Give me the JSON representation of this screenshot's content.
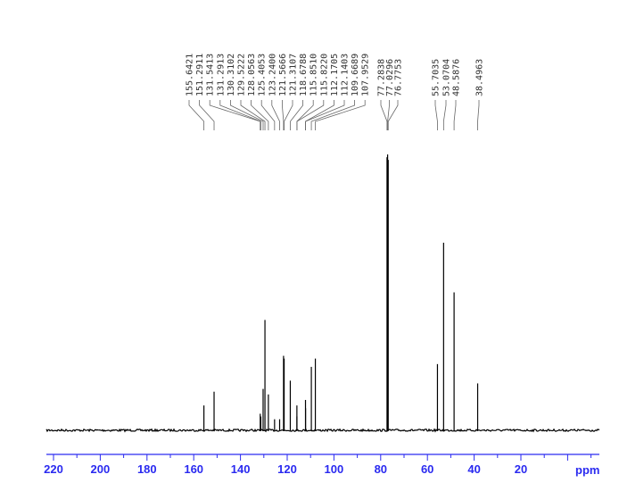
{
  "chart_data": {
    "type": "line",
    "xlabel": "ppm",
    "xlim": [
      223,
      -13.6
    ],
    "x_ticks": [
      220,
      200,
      180,
      160,
      140,
      120,
      100,
      80,
      60,
      40,
      20
    ],
    "axis_color": "#2a2af0",
    "spectrum_color": "#000000",
    "peaks": [
      {
        "ppm": 155.6421,
        "label": "155.6421",
        "intensity": 9
      },
      {
        "ppm": 151.2911,
        "label": "151.2911",
        "intensity": 14
      },
      {
        "ppm": 131.5413,
        "label": "131.5413",
        "intensity": 6
      },
      {
        "ppm": 131.2913,
        "label": "131.2913",
        "intensity": 5
      },
      {
        "ppm": 130.3102,
        "label": "130.3102",
        "intensity": 15
      },
      {
        "ppm": 129.5222,
        "label": "129.5222",
        "intensity": 40
      },
      {
        "ppm": 128.0563,
        "label": "128.0563",
        "intensity": 13
      },
      {
        "ppm": 125.4053,
        "label": "125.4053",
        "intensity": 4
      },
      {
        "ppm": 123.24,
        "label": "123.2400",
        "intensity": 4
      },
      {
        "ppm": 121.5666,
        "label": "121.5666",
        "intensity": 27
      },
      {
        "ppm": 121.3107,
        "label": "121.3107",
        "intensity": 26
      },
      {
        "ppm": 118.6788,
        "label": "118.6788",
        "intensity": 18
      },
      {
        "ppm": 115.851,
        "label": "115.8510",
        "intensity": 9
      },
      {
        "ppm": 115.822,
        "label": "115.8220",
        "intensity": 5
      },
      {
        "ppm": 112.1705,
        "label": "112.1705",
        "intensity": 11
      },
      {
        "ppm": 112.1403,
        "label": "112.1403",
        "intensity": 8
      },
      {
        "ppm": 109.6689,
        "label": "109.6689",
        "intensity": 23
      },
      {
        "ppm": 107.9529,
        "label": "107.9529",
        "intensity": 26
      },
      {
        "ppm": 77.2838,
        "label": "77.2838",
        "intensity": 99
      },
      {
        "ppm": 77.0296,
        "label": "77.0296",
        "intensity": 100
      },
      {
        "ppm": 76.7753,
        "label": "76.7753",
        "intensity": 98
      },
      {
        "ppm": 55.7035,
        "label": "55.7035",
        "intensity": 24
      },
      {
        "ppm": 53.0704,
        "label": "53.0704",
        "intensity": 68
      },
      {
        "ppm": 48.5876,
        "label": "48.5876",
        "intensity": 50
      },
      {
        "ppm": 38.4963,
        "label": "38.4963",
        "intensity": 17
      }
    ]
  }
}
